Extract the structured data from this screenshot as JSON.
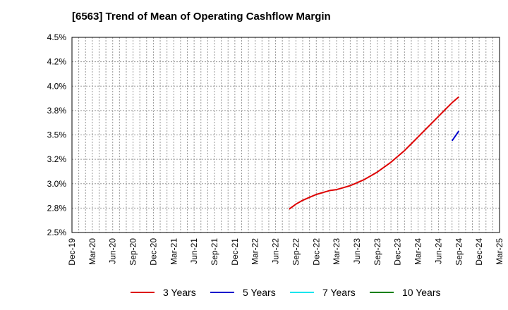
{
  "chart_data": {
    "type": "line",
    "title": "[6563]  Trend of Mean of Operating Cashflow Margin",
    "xlabel": "",
    "ylabel": "",
    "x_ticks": [
      "Dec-19",
      "Mar-20",
      "Jun-20",
      "Sep-20",
      "Dec-20",
      "Mar-21",
      "Jun-21",
      "Sep-21",
      "Dec-21",
      "Mar-22",
      "Jun-22",
      "Sep-22",
      "Dec-22",
      "Mar-23",
      "Jun-23",
      "Sep-23",
      "Dec-23",
      "Mar-24",
      "Jun-24",
      "Sep-24",
      "Dec-24",
      "Mar-25"
    ],
    "y_ticks": [
      "2.5%",
      "2.8%",
      "3.0%",
      "3.2%",
      "3.5%",
      "3.8%",
      "4.0%",
      "4.2%",
      "4.5%"
    ],
    "ylim": [
      2.5,
      4.5
    ],
    "grid": true,
    "legend_position": "bottom",
    "series": [
      {
        "name": "3 Years",
        "color": "#dd0000",
        "x": [
          "Aug-22",
          "Sep-22",
          "Oct-22",
          "Nov-22",
          "Dec-22",
          "Jan-23",
          "Feb-23",
          "Mar-23",
          "Apr-23",
          "May-23",
          "Jun-23",
          "Jul-23",
          "Aug-23",
          "Sep-23",
          "Oct-23",
          "Nov-23",
          "Dec-23",
          "Jan-24",
          "Feb-24",
          "Mar-24",
          "Apr-24",
          "May-24",
          "Jun-24",
          "Jul-24",
          "Aug-24",
          "Sep-24"
        ],
        "values": [
          2.74,
          2.79,
          2.83,
          2.86,
          2.89,
          2.91,
          2.93,
          2.94,
          2.96,
          2.98,
          3.01,
          3.04,
          3.08,
          3.12,
          3.17,
          3.22,
          3.28,
          3.34,
          3.41,
          3.48,
          3.55,
          3.62,
          3.69,
          3.76,
          3.83,
          3.89
        ]
      },
      {
        "name": "5 Years",
        "color": "#0000cc",
        "x": [
          "Aug-24",
          "Sep-24"
        ],
        "values": [
          3.44,
          3.54
        ]
      },
      {
        "name": "7 Years",
        "color": "#00e5ee",
        "x": [],
        "values": []
      },
      {
        "name": "10 Years",
        "color": "#008000",
        "x": [],
        "values": []
      }
    ]
  }
}
